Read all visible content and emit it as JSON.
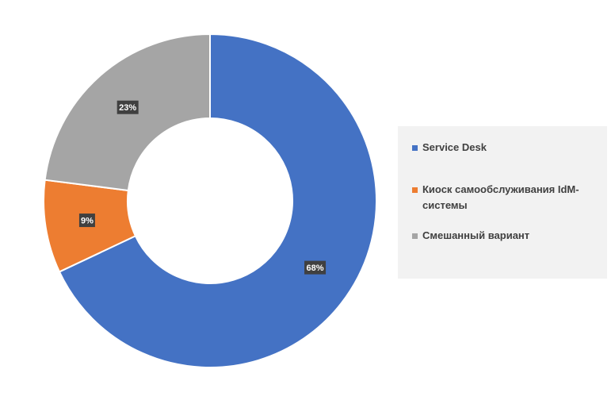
{
  "chart_data": {
    "type": "pie",
    "subtype": "donut",
    "categories": [
      "Service Desk",
      "Киоск самообслуживания IdM-системы",
      "Смешанный вариант"
    ],
    "values": [
      68,
      9,
      23
    ],
    "data_labels": [
      "68%",
      "9%",
      "23%"
    ],
    "colors": [
      "#4472c4",
      "#ed7d31",
      "#a5a5a5"
    ],
    "legend_position": "right"
  },
  "legend": {
    "items": [
      {
        "label": "Service Desk",
        "color": "#4472c4"
      },
      {
        "label": "Киоск самообслуживания IdM-системы",
        "color": "#ed7d31"
      },
      {
        "label": "Смешанный вариант",
        "color": "#a5a5a5"
      }
    ]
  }
}
